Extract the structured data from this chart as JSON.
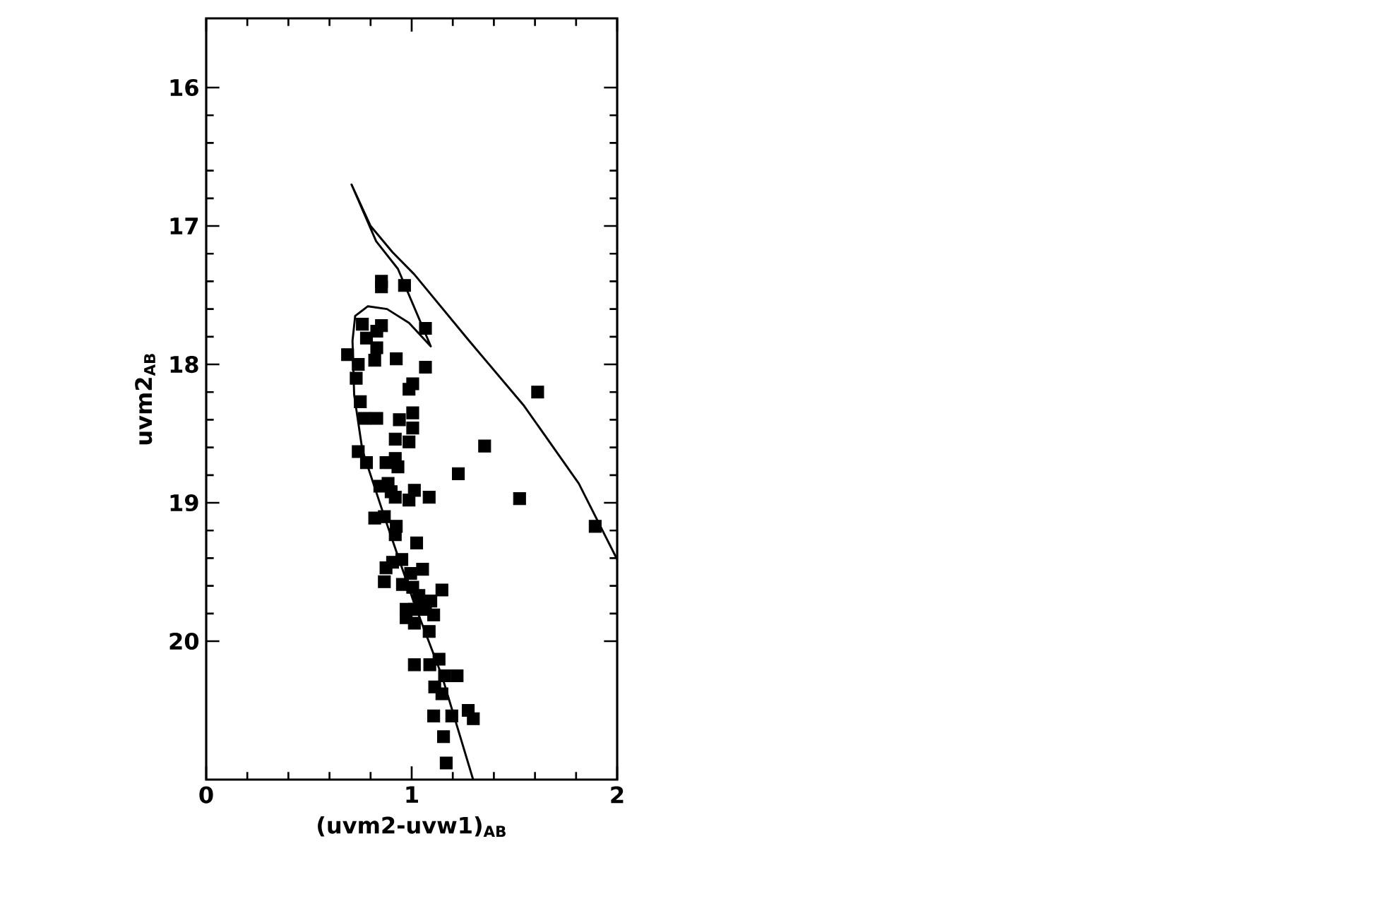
{
  "chart_data": {
    "type": "scatter",
    "xlabel": "(uvm2-uvw1)$_{AB}$",
    "ylabel": "uvm2$_{AB}$",
    "xlim": [
      0,
      2
    ],
    "ylim": [
      21,
      15.5
    ],
    "xticks": [
      0,
      1,
      2
    ],
    "yticks": [
      16,
      17,
      18,
      19,
      20
    ],
    "marker": "square",
    "series": [
      {
        "color": "#000000",
        "x": [
          0.853,
          0.853,
          0.965,
          0.76,
          0.853,
          0.83,
          0.78,
          0.83,
          1.067,
          0.688,
          0.74,
          0.82,
          0.925,
          1.067,
          0.73,
          0.987,
          1.005,
          0.75,
          0.77,
          0.83,
          0.94,
          1.005,
          1.005,
          0.92,
          0.987,
          0.74,
          0.78,
          0.875,
          0.92,
          0.933,
          0.845,
          0.885,
          0.9,
          0.92,
          0.987,
          1.013,
          1.085,
          0.82,
          0.867,
          0.925,
          0.92,
          1.024,
          0.907,
          0.952,
          0.875,
          0.867,
          0.995,
          1.053,
          0.955,
          1.005,
          1.147,
          1.035,
          0.973,
          0.973,
          1.013,
          1.04,
          1.067,
          1.093,
          1.107,
          1.013,
          1.085,
          1.013,
          1.088,
          1.133,
          1.16,
          1.221,
          1.112,
          1.147,
          1.275,
          1.3,
          1.107,
          1.195,
          1.155,
          1.168,
          1.355,
          1.227,
          1.893
        ],
        "values": [
          17.4,
          17.44,
          17.43,
          17.71,
          17.72,
          17.76,
          17.81,
          17.88,
          17.74,
          17.93,
          18.0,
          17.97,
          17.96,
          18.02,
          18.1,
          18.18,
          18.14,
          18.27,
          18.39,
          18.39,
          18.4,
          18.35,
          18.46,
          18.54,
          18.56,
          18.63,
          18.71,
          18.71,
          18.68,
          18.74,
          18.88,
          18.86,
          18.92,
          18.96,
          18.98,
          18.91,
          18.96,
          19.11,
          19.1,
          19.17,
          19.23,
          19.29,
          19.43,
          19.41,
          19.47,
          19.57,
          19.51,
          19.48,
          19.59,
          19.61,
          19.63,
          19.67,
          19.77,
          19.83,
          19.77,
          19.74,
          19.77,
          19.71,
          19.81,
          19.87,
          19.93,
          20.17,
          20.17,
          20.13,
          20.25,
          20.25,
          20.33,
          20.38,
          20.5,
          20.56,
          20.54,
          20.54,
          20.69,
          20.88,
          18.59,
          18.79,
          19.17
        ]
      },
      {
        "color": "#000000",
        "x": [
          1.613,
          1.525
        ],
        "values": [
          18.2,
          18.97
        ]
      },
      {
        "type": "line",
        "color": "#000000",
        "marker": "none",
        "line_style": "solid",
        "x": [
          1.299,
          1.147,
          1.013,
          0.867,
          0.76,
          0.72,
          0.712,
          0.725,
          0.787,
          0.88,
          0.987,
          1.093,
          1.013,
          0.933,
          0.827,
          0.707,
          0.8,
          0.907,
          1.013,
          1.28,
          1.547,
          1.813,
          2.0
        ],
        "values": [
          21.0,
          20.25,
          19.73,
          19.1,
          18.62,
          18.22,
          17.83,
          17.65,
          17.58,
          17.6,
          17.7,
          17.87,
          17.59,
          17.31,
          17.11,
          16.7,
          17.0,
          17.19,
          17.35,
          17.83,
          18.3,
          18.86,
          19.41
        ]
      }
    ]
  }
}
